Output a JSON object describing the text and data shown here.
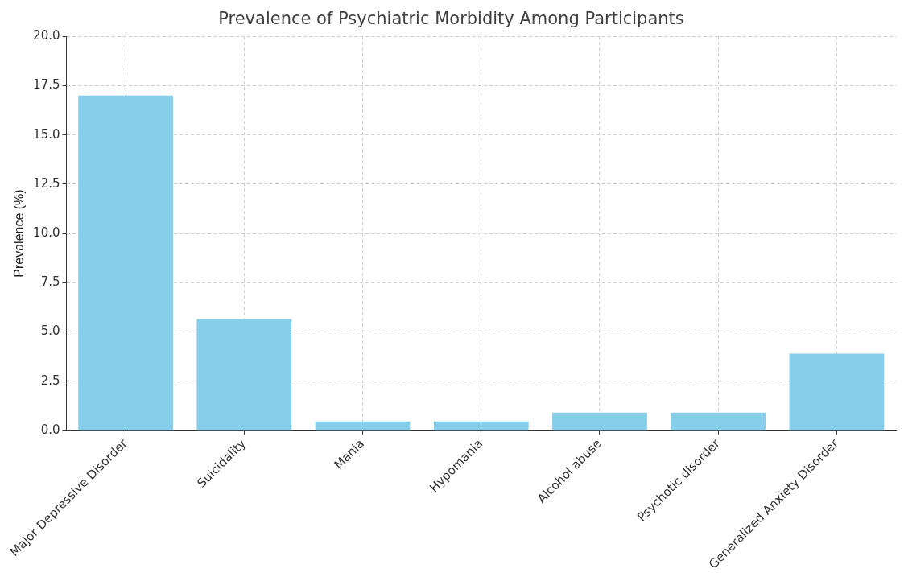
{
  "chart_data": {
    "type": "bar",
    "title": "Prevalence of Psychiatric Morbidity Among Participants",
    "ylabel": "Prevalence (%)",
    "categories": [
      "Major Depressive Disorder",
      "Suicidality",
      "Mania",
      "Hypomania",
      "Alcohol abuse",
      "Psychotic disorder",
      "Generalized Anxiety Disorder"
    ],
    "values": [
      17.0,
      5.65,
      0.45,
      0.45,
      0.9,
      0.9,
      3.9
    ],
    "color": "#87ceeb",
    "ylim": [
      0,
      20
    ],
    "yticks": [
      {
        "value": 0,
        "label": "0.0"
      },
      {
        "value": 2.5,
        "label": "2.5"
      },
      {
        "value": 5,
        "label": "5.0"
      },
      {
        "value": 7.5,
        "label": "7.5"
      },
      {
        "value": 10,
        "label": "10.0"
      },
      {
        "value": 12.5,
        "label": "12.5"
      },
      {
        "value": 15,
        "label": "15.0"
      },
      {
        "value": 17.5,
        "label": "17.5"
      },
      {
        "value": 20,
        "label": "20.0"
      }
    ],
    "grid": true
  }
}
